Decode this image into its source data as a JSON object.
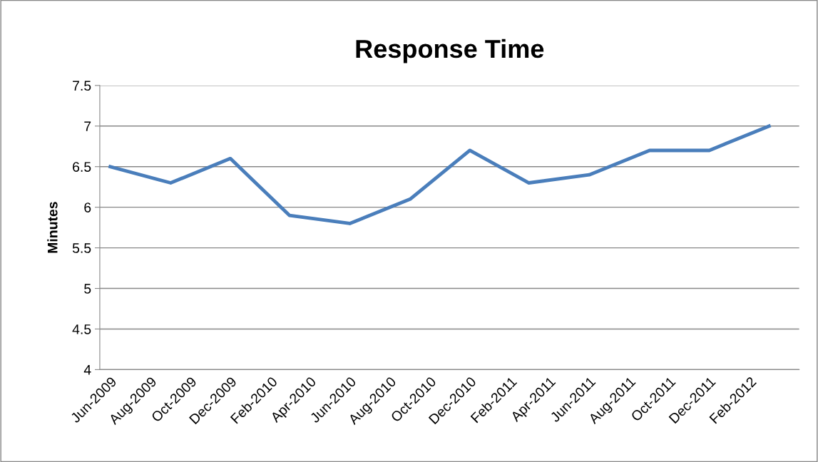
{
  "chart_data": {
    "type": "line",
    "title": "Response Time",
    "ylabel": "Minutes",
    "x": [
      "2009-06",
      "2009-09",
      "2009-12",
      "2010-03",
      "2010-06",
      "2010-09",
      "2010-12",
      "2011-03",
      "2011-06",
      "2011-09",
      "2011-12",
      "2012-03"
    ],
    "series": [
      {
        "color": "#4a7ebb",
        "values": [
          6.5,
          6.3,
          6.6,
          5.9,
          5.8,
          6.1,
          6.7,
          6.3,
          6.4,
          6.7,
          6.7,
          7.0
        ]
      }
    ],
    "xlim": [
      "2009-05-16",
      "2012-04-16"
    ],
    "xticks": [
      {
        "value": "2009-06",
        "label": "Jun-2009"
      },
      {
        "value": "2009-08",
        "label": "Aug-2009"
      },
      {
        "value": "2009-10",
        "label": "Oct-2009"
      },
      {
        "value": "2009-12",
        "label": "Dec-2009"
      },
      {
        "value": "2010-02",
        "label": "Feb-2010"
      },
      {
        "value": "2010-04",
        "label": "Apr-2010"
      },
      {
        "value": "2010-06",
        "label": "Jun-2010"
      },
      {
        "value": "2010-08",
        "label": "Aug-2010"
      },
      {
        "value": "2010-10",
        "label": "Oct-2010"
      },
      {
        "value": "2010-12",
        "label": "Dec-2010"
      },
      {
        "value": "2011-02",
        "label": "Feb-2011"
      },
      {
        "value": "2011-04",
        "label": "Apr-2011"
      },
      {
        "value": "2011-06",
        "label": "Jun-2011"
      },
      {
        "value": "2011-08",
        "label": "Aug-2011"
      },
      {
        "value": "2011-10",
        "label": "Oct-2011"
      },
      {
        "value": "2011-12",
        "label": "Dec-2011"
      },
      {
        "value": "2012-02",
        "label": "Feb-2012"
      }
    ],
    "ylim": [
      4,
      7.5
    ],
    "yticks": [
      4,
      4.5,
      5,
      5.5,
      6,
      6.5,
      7,
      7.5
    ],
    "grid": "y",
    "marker": "none",
    "line_style": "solid"
  }
}
